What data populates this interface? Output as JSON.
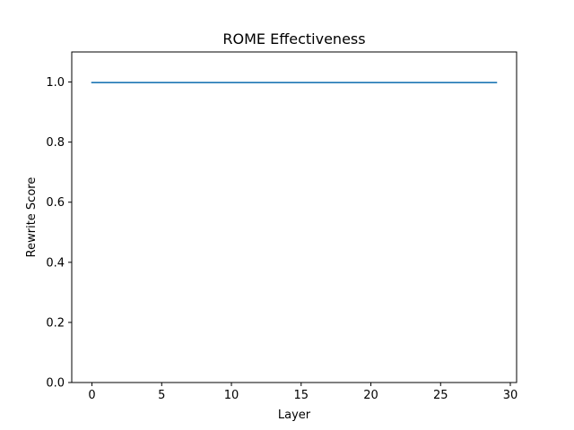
{
  "chart_data": {
    "type": "line",
    "title": "ROME Effectiveness",
    "xlabel": "Layer",
    "ylabel": "Rewrite Score",
    "xlim": [
      -1.45,
      30.45
    ],
    "ylim": [
      0.0,
      1.1
    ],
    "xticks": [
      0,
      5,
      10,
      15,
      20,
      25,
      30
    ],
    "xtick_labels": [
      "0",
      "5",
      "10",
      "15",
      "20",
      "25",
      "30"
    ],
    "yticks": [
      0.0,
      0.2,
      0.4,
      0.6,
      0.8,
      1.0
    ],
    "ytick_labels": [
      "0.0",
      "0.2",
      "0.4",
      "0.6",
      "0.8",
      "1.0"
    ],
    "grid": false,
    "series": [
      {
        "color": "#1f77b4",
        "x": [
          0,
          1,
          2,
          3,
          4,
          5,
          6,
          7,
          8,
          9,
          10,
          11,
          12,
          13,
          14,
          15,
          16,
          17,
          18,
          19,
          20,
          21,
          22,
          23,
          24,
          25,
          26,
          27,
          28,
          29
        ],
        "y": [
          0.998,
          0.998,
          0.998,
          0.998,
          0.998,
          0.998,
          0.998,
          0.998,
          0.998,
          0.998,
          0.998,
          0.998,
          0.998,
          0.998,
          0.998,
          0.998,
          0.998,
          0.998,
          0.998,
          0.998,
          0.998,
          0.998,
          0.998,
          0.998,
          0.998,
          0.998,
          0.998,
          0.998,
          0.998,
          0.998
        ]
      }
    ]
  }
}
